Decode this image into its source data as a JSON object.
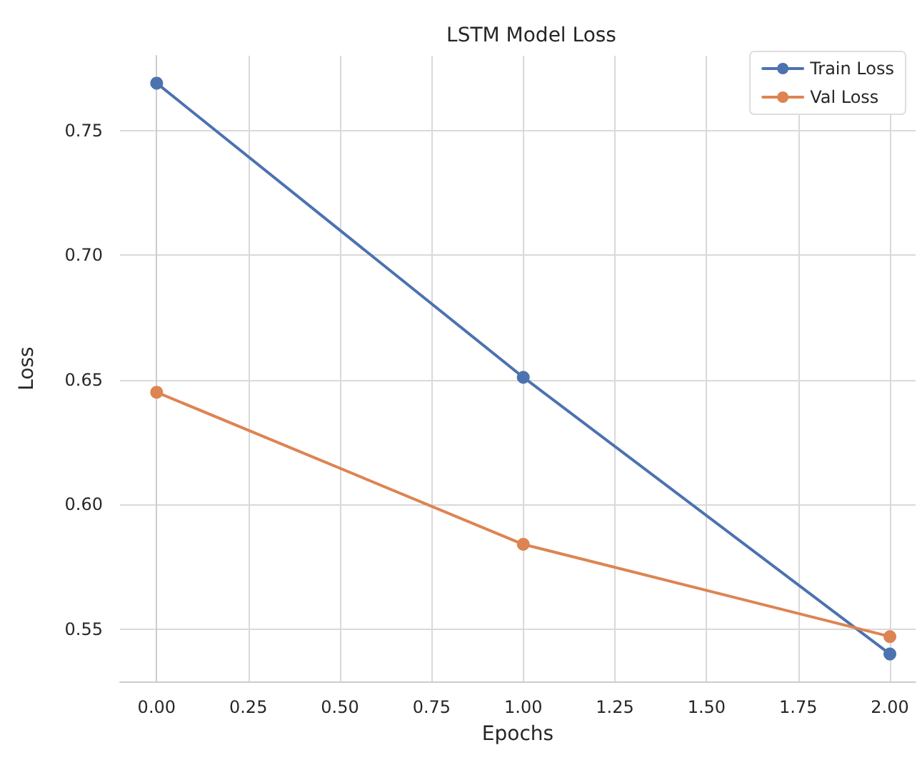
{
  "chart_data": {
    "type": "line",
    "title": "LSTM Model Loss",
    "xlabel": "Epochs",
    "ylabel": "Loss",
    "x": [
      0,
      1,
      2
    ],
    "series": [
      {
        "name": "Train Loss",
        "color": "#4c72b0",
        "values": [
          0.769,
          0.651,
          0.54
        ]
      },
      {
        "name": "Val Loss",
        "color": "#dd8452",
        "values": [
          0.645,
          0.584,
          0.547
        ]
      }
    ],
    "xlim": [
      -0.1,
      2.07
    ],
    "xticks": [
      {
        "value": 0,
        "label": "0.00"
      },
      {
        "value": 0.25,
        "label": "0.25"
      },
      {
        "value": 0.5,
        "label": "0.50"
      },
      {
        "value": 0.75,
        "label": "0.75"
      },
      {
        "value": 1,
        "label": "1.00"
      },
      {
        "value": 1.25,
        "label": "1.25"
      },
      {
        "value": 1.5,
        "label": "1.50"
      },
      {
        "value": 1.75,
        "label": "1.75"
      },
      {
        "value": 2,
        "label": "2.00"
      }
    ],
    "ylim": [
      0.529,
      0.78
    ],
    "yticks": [
      {
        "value": 0.55,
        "label": "0.55"
      },
      {
        "value": 0.6,
        "label": "0.60"
      },
      {
        "value": 0.65,
        "label": "0.65"
      },
      {
        "value": 0.7,
        "label": "0.70"
      },
      {
        "value": 0.75,
        "label": "0.75"
      }
    ],
    "grid": true,
    "legend": "top right",
    "marker": "circle",
    "line_style": "solid"
  }
}
